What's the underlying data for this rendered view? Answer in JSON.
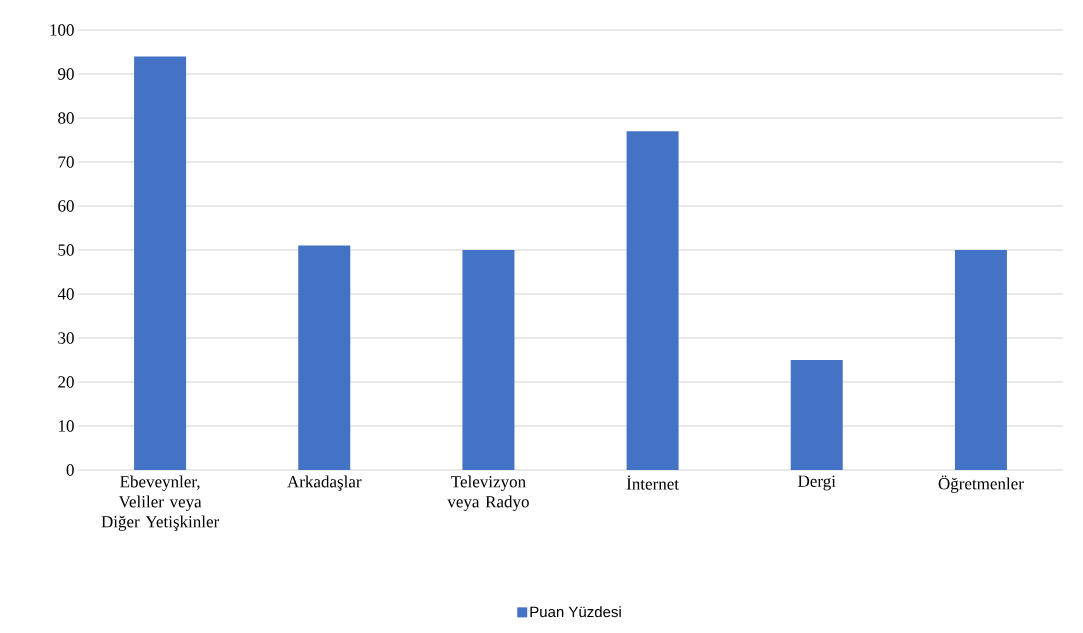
{
  "chart_data": {
    "type": "bar",
    "categories": [
      "Ebeveynler, Veliler veya Diğer Yetişkinler",
      "Arkadaşlar",
      "Televizyon veya Radyo",
      "İnternet",
      "Dergi",
      "Öğretmenler"
    ],
    "series": [
      {
        "name": "Puan Yüzdesi",
        "color": "#4472c4",
        "values": [
          94,
          51,
          50,
          77,
          25,
          50
        ]
      }
    ],
    "ylim": [
      0,
      100
    ],
    "yticks": [
      0,
      10,
      20,
      30,
      40,
      50,
      60,
      70,
      80,
      90,
      100
    ],
    "grid": "y",
    "legend": "bottom"
  }
}
